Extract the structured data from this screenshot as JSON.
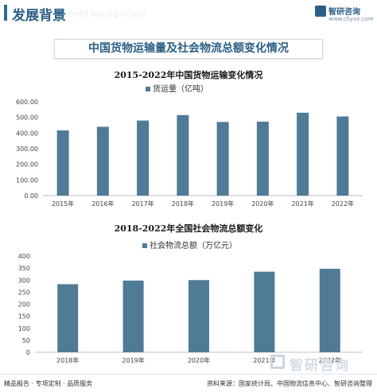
{
  "header": {
    "title": "发展背景",
    "ghost_text": "nent background",
    "brand_name": "智研咨询",
    "brand_url": "www.chyxx.com"
  },
  "banner": {
    "title": "中国货物运输量及社会物流总额变化情况"
  },
  "chart_data": [
    {
      "type": "bar",
      "title": "2015-2022年中国货物运输变化情况",
      "legend": [
        "货运量（亿吨）"
      ],
      "categories": [
        "2015年",
        "2016年",
        "2017年",
        "2018年",
        "2019年",
        "2020年",
        "2021年",
        "2022年"
      ],
      "series": [
        {
          "name": "货运量（亿吨）",
          "values": [
            417,
            440,
            480,
            515,
            471,
            473,
            530,
            506
          ]
        }
      ],
      "yticks": [
        "0.00",
        "100.00",
        "200.00",
        "300.00",
        "400.00",
        "500.00",
        "600.00"
      ],
      "ylim": [
        0,
        600
      ],
      "grid": false,
      "legend_position": "top-left",
      "color": "#4f7b97"
    },
    {
      "type": "bar",
      "title": "2018-2022年全国社会物流总额变化",
      "legend": [
        "社会物流总额（万亿元）"
      ],
      "categories": [
        "2018年",
        "2019年",
        "2020年",
        "2021年",
        "2022年"
      ],
      "series": [
        {
          "name": "社会物流总额（万亿元）",
          "values": [
            283,
            298,
            300,
            335,
            347
          ]
        }
      ],
      "yticks": [
        "0",
        "50",
        "100",
        "150",
        "200",
        "250",
        "300",
        "350",
        "400"
      ],
      "ylim": [
        0,
        400
      ],
      "grid": false,
      "legend_position": "top-left",
      "color": "#4f7b97"
    }
  ],
  "footer": {
    "left": "精品报告 · 专项定制 · 品质服务",
    "right": "资料来源：国家统计局、中国物流信息中心、智研咨询整理",
    "logo": "智研咨询"
  }
}
